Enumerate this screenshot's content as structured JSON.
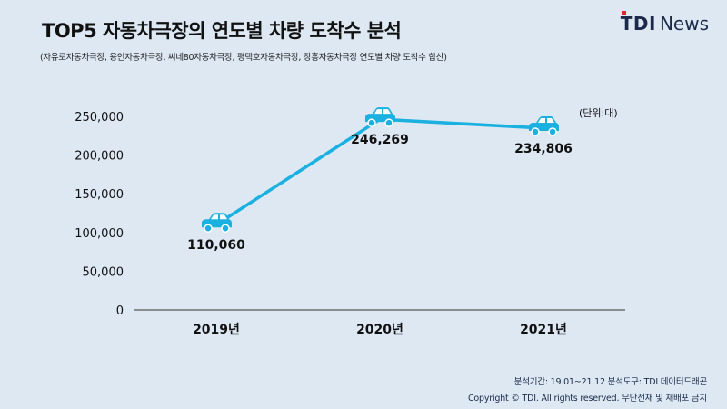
{
  "header": {
    "title": "TOP5 자동차극장의 연도별 차량 도착수 분석",
    "subtitle": "(자유로자동차극장, 용인자동차극장, 씨네80자동차극장, 평택호자동차극장, 장흥자동차극장 연도별 차량 도착수 합산)"
  },
  "logo": {
    "brand": "TDI",
    "suffix": "News"
  },
  "unit_label": "(단위:대)",
  "footer": {
    "line1": "분석기간: 19.01~21.12    분석도구: TDI 데이터드래곤",
    "line2": "Copyright © TDI. All rights reserved. 무단전재 및 재배포 금지"
  },
  "colors": {
    "background": "#dde8f3",
    "line": "#1ab0e0",
    "car": "#1ab0e0",
    "axis": "#333333"
  },
  "chart_data": {
    "type": "line",
    "categories": [
      "2019년",
      "2020년",
      "2021년"
    ],
    "values": [
      110060,
      246269,
      234806
    ],
    "data_labels": [
      "110,060",
      "246,269",
      "234,806"
    ],
    "yticks": [
      0,
      50000,
      100000,
      150000,
      200000,
      250000
    ],
    "ytick_labels": [
      "0",
      "50,000",
      "100,000",
      "150,000",
      "200,000",
      "250,000"
    ],
    "ylim": [
      0,
      250000
    ],
    "grid": false,
    "marker": "car-icon"
  }
}
